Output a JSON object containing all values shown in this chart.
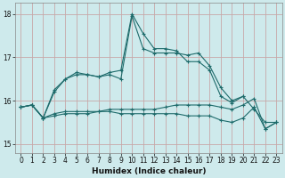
{
  "xlabel": "Humidex (Indice chaleur)",
  "background_color": "#ceeaec",
  "line_color": "#1e6b6b",
  "grid_color": "#c8a8a8",
  "xlim": [
    -0.5,
    23.5
  ],
  "ylim": [
    14.8,
    18.25
  ],
  "yticks": [
    15,
    16,
    17,
    18
  ],
  "xticks": [
    0,
    1,
    2,
    3,
    4,
    5,
    6,
    7,
    8,
    9,
    10,
    11,
    12,
    13,
    14,
    15,
    16,
    17,
    18,
    19,
    20,
    21,
    22,
    23
  ],
  "series": [
    [
      15.85,
      15.9,
      15.6,
      16.25,
      16.5,
      16.65,
      16.6,
      16.55,
      16.65,
      16.7,
      18.0,
      17.55,
      17.2,
      17.2,
      17.15,
      16.9,
      16.9,
      16.7,
      16.1,
      15.95,
      16.1,
      null,
      null,
      null
    ],
    [
      15.85,
      15.9,
      15.6,
      16.2,
      16.5,
      16.6,
      16.6,
      16.55,
      16.6,
      16.5,
      17.95,
      17.2,
      17.1,
      17.1,
      17.1,
      17.05,
      17.1,
      16.8,
      16.3,
      16.0,
      16.1,
      15.8,
      15.5,
      15.5
    ],
    [
      15.85,
      15.9,
      15.6,
      15.65,
      15.7,
      15.7,
      15.7,
      15.75,
      15.8,
      15.8,
      15.8,
      15.8,
      15.8,
      15.85,
      15.9,
      15.9,
      15.9,
      15.9,
      15.85,
      15.8,
      15.9,
      16.05,
      15.35,
      15.5
    ],
    [
      15.85,
      15.9,
      15.6,
      15.7,
      15.75,
      15.75,
      15.75,
      15.75,
      15.75,
      15.7,
      15.7,
      15.7,
      15.7,
      15.7,
      15.7,
      15.65,
      15.65,
      15.65,
      15.55,
      15.5,
      15.6,
      15.85,
      15.35,
      15.5
    ]
  ],
  "marker": "+",
  "markersize": 3.5,
  "linewidth": 0.8,
  "tick_fontsize": 5.5,
  "xlabel_fontsize": 6.5
}
